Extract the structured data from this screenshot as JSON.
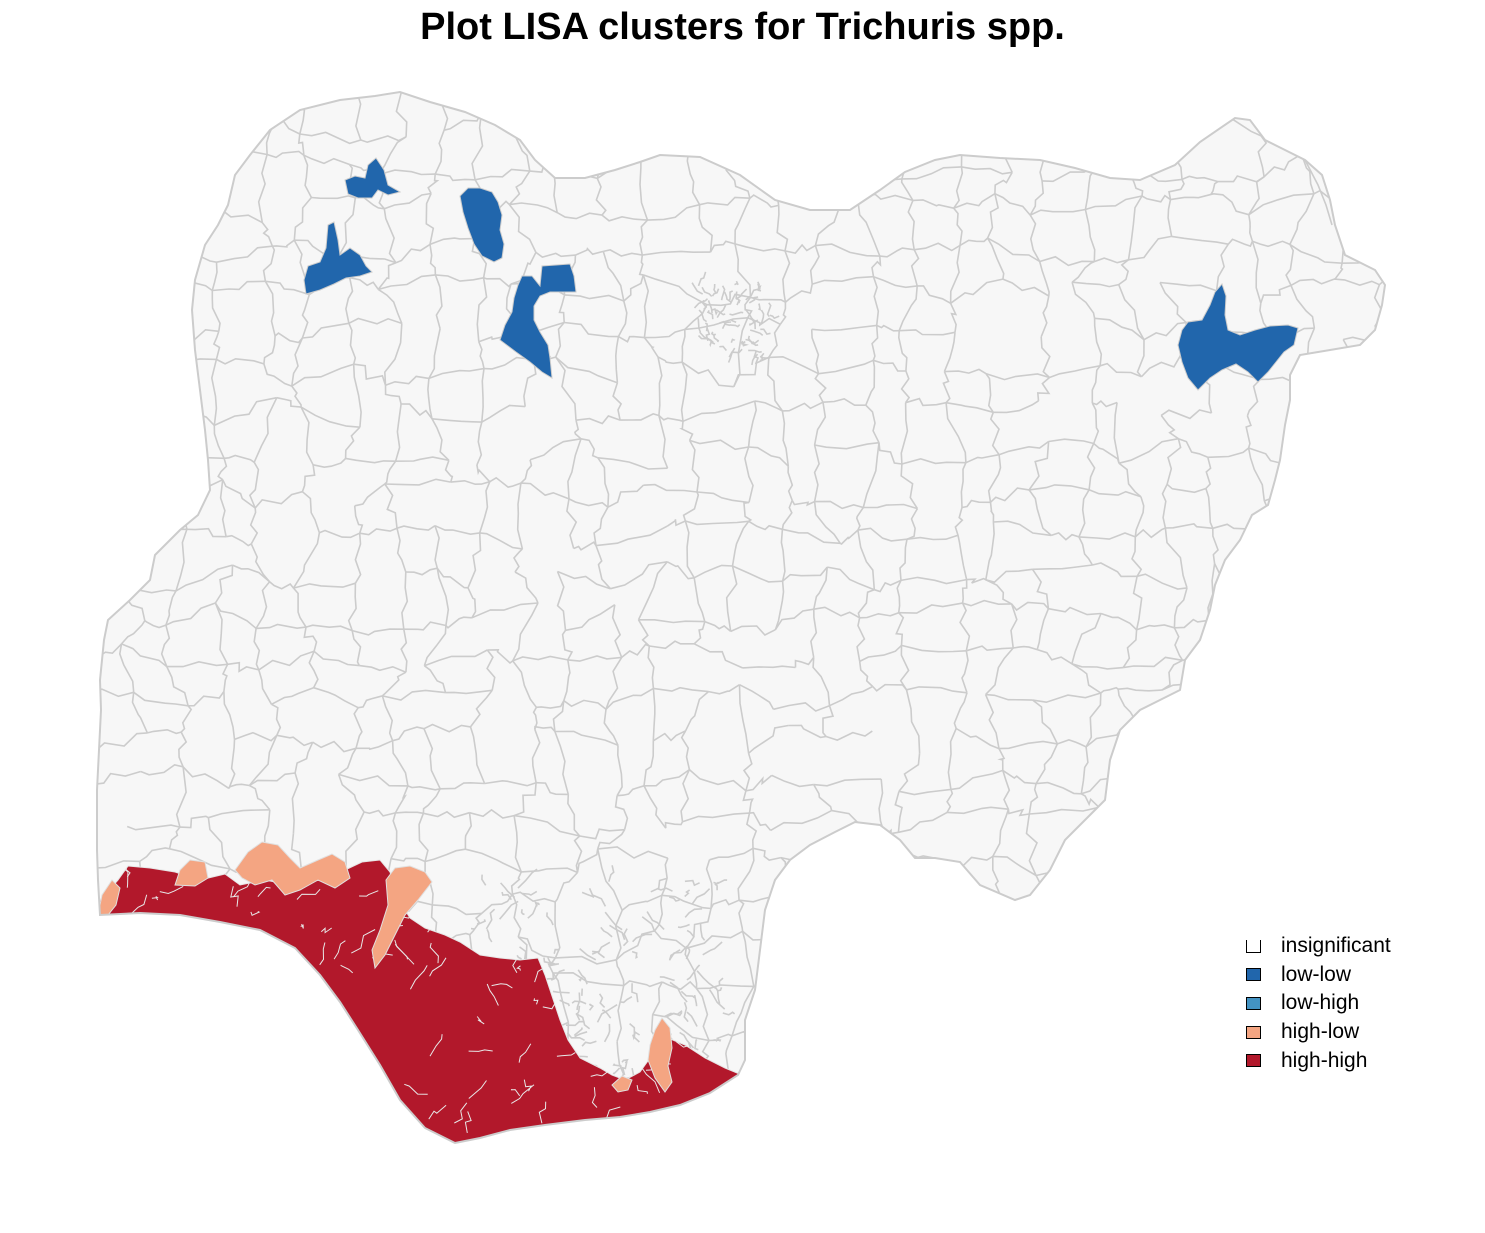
{
  "map": {
    "title": "Plot LISA clusters for Trichuris spp.",
    "country": "Nigeria",
    "unit": "LGA",
    "colors": {
      "insignificant": "#f7f7f7",
      "low-low": "#2166ac",
      "low-high": "#4393c3",
      "high-low": "#f4a582",
      "high-high": "#b2182b",
      "boundary": "#cccccc"
    },
    "legend": {
      "position": "bottom-right",
      "items": [
        {
          "label": "insignificant",
          "key": "insignificant"
        },
        {
          "label": "low-low",
          "key": "low-low"
        },
        {
          "label": "low-high",
          "key": "low-high"
        },
        {
          "label": "high-low",
          "key": "high-low"
        },
        {
          "label": "high-high",
          "key": "high-high"
        }
      ]
    }
  }
}
